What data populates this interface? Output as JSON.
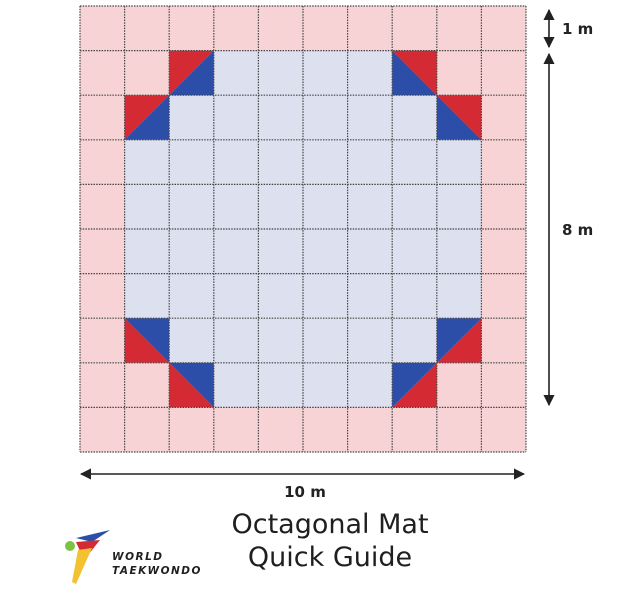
{
  "dimensions": {
    "width_label": "10 m",
    "height_label": "8 m",
    "border_label": "1 m"
  },
  "title": {
    "line1": "Octagonal Mat",
    "line2": "Quick Guide"
  },
  "logo": {
    "line1": "WORLD",
    "line2": "TAEKWONDO"
  },
  "mat": {
    "columns": 10,
    "rows": 10,
    "colors": {
      "outer": "#f7d3d6",
      "inner": "#dde0ee",
      "red": "#d42a34",
      "blue": "#2d4ea8",
      "grid": "#444444"
    }
  }
}
